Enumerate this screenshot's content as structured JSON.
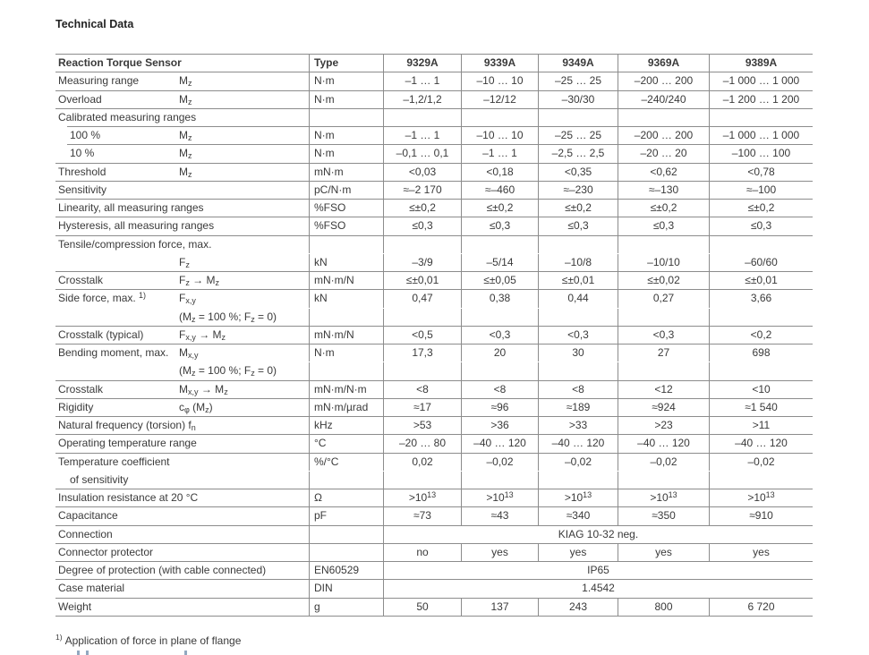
{
  "page": {
    "title": "Technical Data",
    "footnote": {
      "marker": "1)",
      "text": "Application of force in plane of flange"
    }
  },
  "colors": {
    "text": "#3a3a3a",
    "line": "#8c8c8c",
    "background": "#ffffff",
    "title": "#222222"
  },
  "table": {
    "header": {
      "label": "Reaction Torque Sensor",
      "type_label": "Type",
      "models": [
        "9329A",
        "9339A",
        "9349A",
        "9369A",
        "9389A"
      ]
    },
    "rows": [
      {
        "name": "Measuring range",
        "symbol": [
          {
            "t": "M"
          },
          {
            "t": "z",
            "sub": true
          }
        ],
        "unit": "N·m",
        "values": [
          "–1 … 1",
          "–10 … 10",
          "–25 … 25",
          "–200 … 200",
          "–1 000 … 1 000"
        ],
        "border": "full"
      },
      {
        "name": "Overload",
        "symbol": [
          {
            "t": "M"
          },
          {
            "t": "z",
            "sub": true
          }
        ],
        "unit": "N·m",
        "values": [
          "–1,2/1,2",
          "–12/12",
          "–30/30",
          "–240/240",
          "–1 200 … 1 200"
        ],
        "border": "full"
      },
      {
        "name": "Calibrated measuring ranges",
        "values": [
          "",
          "",
          "",
          "",
          ""
        ],
        "border": "full"
      },
      {
        "name": "100 %",
        "indent": true,
        "symbol": [
          {
            "t": "M"
          },
          {
            "t": "z",
            "sub": true
          }
        ],
        "unit": "N·m",
        "values": [
          "–1 … 1",
          "–10 … 10",
          "–25 … 25",
          "–200 … 200",
          "–1 000 … 1 000"
        ],
        "border": "indent"
      },
      {
        "name": "10 %",
        "indent": true,
        "symbol": [
          {
            "t": "M"
          },
          {
            "t": "z",
            "sub": true
          }
        ],
        "unit": "N·m",
        "values": [
          "–0,1 … 0,1",
          "–1 … 1",
          "–2,5 … 2,5",
          "–20 … 20",
          "–100 … 100"
        ],
        "border": "indent"
      },
      {
        "name": "Threshold",
        "symbol": [
          {
            "t": "M"
          },
          {
            "t": "z",
            "sub": true
          }
        ],
        "unit": "mN·m",
        "values": [
          "<0,03",
          "<0,18",
          "<0,35",
          "<0,62",
          "<0,78"
        ],
        "border": "full"
      },
      {
        "name": "Sensitivity",
        "unit": "pC/N·m",
        "values": [
          "≈–2 170",
          "≈–460",
          "≈–230",
          "≈–130",
          "≈–100"
        ],
        "border": "full"
      },
      {
        "name": "Linearity, all measuring ranges",
        "unit": "%FSO",
        "values": [
          "≤±0,2",
          "≤±0,2",
          "≤±0,2",
          "≤±0,2",
          "≤±0,2"
        ],
        "border": "full"
      },
      {
        "name": "Hysteresis, all measuring ranges",
        "unit": "%FSO",
        "values": [
          "≤0,3",
          "≤0,3",
          "≤0,3",
          "≤0,3",
          "≤0,3"
        ],
        "border": "full"
      },
      {
        "name": "Tensile/compression force, max.",
        "values": [
          "",
          "",
          "",
          "",
          ""
        ],
        "border": "full"
      },
      {
        "symbol": [
          {
            "t": "F"
          },
          {
            "t": "z",
            "sub": true
          }
        ],
        "unit": "kN",
        "values": [
          "–3/9",
          "–5/14",
          "–10/8",
          "–10/10",
          "–60/60"
        ],
        "border": "none"
      },
      {
        "name": "Crosstalk",
        "symbol": [
          {
            "t": "F"
          },
          {
            "t": "z",
            "sub": true
          },
          {
            "t": " → M"
          },
          {
            "t": "z",
            "sub": true
          }
        ],
        "unit": "mN·m/N",
        "values": [
          "≤±0,01",
          "≤±0,05",
          "≤±0,01",
          "≤±0,02",
          "≤±0,01"
        ],
        "border": "full"
      },
      {
        "name": [
          {
            "t": "Side force, max. "
          },
          {
            "t": "1)",
            "sup": true
          }
        ],
        "symbol": [
          {
            "t": "F"
          },
          {
            "t": "x,y",
            "sub": true
          }
        ],
        "unit": "kN",
        "values": [
          "0,47",
          "0,38",
          "0,44",
          "0,27",
          "3,66"
        ],
        "border": "full"
      },
      {
        "symbol": [
          {
            "t": "(M"
          },
          {
            "t": "z",
            "sub": true
          },
          {
            "t": " = 100 %; F"
          },
          {
            "t": "z",
            "sub": true
          },
          {
            "t": " = 0)"
          }
        ],
        "values": [
          "",
          "",
          "",
          "",
          ""
        ],
        "border": "none"
      },
      {
        "name": "Crosstalk (typical)",
        "symbol": [
          {
            "t": "F"
          },
          {
            "t": "x,y",
            "sub": true
          },
          {
            "t": " → M"
          },
          {
            "t": "z",
            "sub": true
          }
        ],
        "unit": "mN·m/N",
        "values": [
          "<0,5",
          "<0,3",
          "<0,3",
          "<0,3",
          "<0,2"
        ],
        "border": "full"
      },
      {
        "name": "Bending moment, max.",
        "symbol": [
          {
            "t": "M"
          },
          {
            "t": "x,y",
            "sub": true
          }
        ],
        "unit": "N·m",
        "values": [
          "17,3",
          "20",
          "30",
          "27",
          "698"
        ],
        "border": "full"
      },
      {
        "symbol": [
          {
            "t": "(M"
          },
          {
            "t": "z",
            "sub": true
          },
          {
            "t": " = 100 %; F"
          },
          {
            "t": "z",
            "sub": true
          },
          {
            "t": " = 0)"
          }
        ],
        "values": [
          "",
          "",
          "",
          "",
          ""
        ],
        "border": "none"
      },
      {
        "name": "Crosstalk",
        "symbol": [
          {
            "t": "M"
          },
          {
            "t": "x,y",
            "sub": true
          },
          {
            "t": " → M"
          },
          {
            "t": "z",
            "sub": true
          }
        ],
        "unit": "mN·m/N·m",
        "values": [
          "<8",
          "<8",
          "<8",
          "<12",
          "<10"
        ],
        "border": "full"
      },
      {
        "name": "Rigidity",
        "symbol": [
          {
            "t": "c"
          },
          {
            "t": "φ",
            "sub": true
          },
          {
            "t": " (M"
          },
          {
            "t": "z",
            "sub": true
          },
          {
            "t": ")"
          }
        ],
        "unit": "mN·m/µrad",
        "values": [
          "≈17",
          "≈96",
          "≈189",
          "≈924",
          "≈1 540"
        ],
        "border": "full"
      },
      {
        "name": [
          {
            "t": "Natural frequency (torsion) f"
          },
          {
            "t": "n",
            "sub": true
          }
        ],
        "unit": "kHz",
        "values": [
          ">53",
          ">36",
          ">33",
          ">23",
          ">11"
        ],
        "border": "full"
      },
      {
        "name": "Operating temperature range",
        "unit": "°C",
        "values": [
          "–20 … 80",
          "–40 … 120",
          "–40 … 120",
          "–40 … 120",
          "–40 … 120"
        ],
        "border": "full"
      },
      {
        "name": "Temperature coefficient",
        "unit": "%/°C",
        "values": [
          "0,02",
          "–0,02",
          "–0,02",
          "–0,02",
          "–0,02"
        ],
        "border": "full"
      },
      {
        "name": "of sensitivity",
        "indent": true,
        "values": [
          "",
          "",
          "",
          "",
          ""
        ],
        "border": "none"
      },
      {
        "name": "Insulation resistance at 20 °C",
        "unit": "Ω",
        "values": [
          [
            {
              "t": ">10"
            },
            {
              "t": "13",
              "sup": true
            }
          ],
          [
            {
              "t": ">10"
            },
            {
              "t": "13",
              "sup": true
            }
          ],
          [
            {
              "t": ">10"
            },
            {
              "t": "13",
              "sup": true
            }
          ],
          [
            {
              "t": ">10"
            },
            {
              "t": "13",
              "sup": true
            }
          ],
          [
            {
              "t": ">10"
            },
            {
              "t": "13",
              "sup": true
            }
          ]
        ],
        "border": "full"
      },
      {
        "name": "Capacitance",
        "unit": "pF",
        "values": [
          "≈73",
          "≈43",
          "≈340",
          "≈350",
          "≈910"
        ],
        "border": "full"
      },
      {
        "name": "Connection",
        "span": "KIAG 10-32 neg.",
        "border": "full"
      },
      {
        "name": "Connector protector",
        "values": [
          "no",
          "yes",
          "yes",
          "yes",
          "yes"
        ],
        "border": "full"
      },
      {
        "name": "Degree of protection (with cable connected)",
        "unit": "EN60529",
        "span": "IP65",
        "border": "full"
      },
      {
        "name": "Case material",
        "unit": "DIN",
        "span": "1.4542",
        "border": "full"
      },
      {
        "name": "Weight",
        "unit": "g",
        "values": [
          "50",
          "137",
          "243",
          "800",
          "6 720"
        ],
        "border": "full"
      }
    ]
  }
}
